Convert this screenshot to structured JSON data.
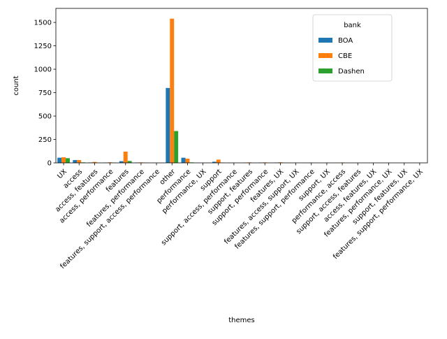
{
  "chart_data": {
    "type": "bar",
    "xlabel": "themes",
    "ylabel": "count",
    "ylim": [
      0,
      1650
    ],
    "yticks": [
      0,
      250,
      500,
      750,
      1000,
      1250,
      1500
    ],
    "grid": false,
    "legend": {
      "title": "bank",
      "placement": "top-right"
    },
    "categories": [
      "UX",
      "access",
      "access, features",
      "access, performance",
      "features",
      "features, performance",
      "features, support, access, performance",
      "other",
      "performance",
      "performance, UX",
      "support",
      "support, access, performance",
      "support, features",
      "support, performance",
      "features, UX",
      "features, access, support, UX",
      "features, support, performance",
      "support, UX",
      "performance, access",
      "support, access, features",
      "access, features, UX",
      "features, performance, UX",
      "support, features, UX",
      "features, support, performance, UX"
    ],
    "series": [
      {
        "name": "BOA",
        "color": "#1f77b4",
        "values": [
          55,
          30,
          4,
          3,
          18,
          3,
          1,
          800,
          55,
          1,
          12,
          1,
          2,
          3,
          3,
          0,
          1,
          0,
          0,
          0,
          0,
          0,
          0,
          0
        ]
      },
      {
        "name": "CBE",
        "color": "#ff7f0e",
        "values": [
          60,
          30,
          10,
          6,
          120,
          5,
          0,
          1540,
          45,
          0,
          35,
          2,
          5,
          5,
          6,
          2,
          3,
          2,
          4,
          1,
          1,
          1,
          0,
          1
        ]
      },
      {
        "name": "Dashen",
        "color": "#2ca02c",
        "values": [
          50,
          5,
          2,
          2,
          20,
          2,
          0,
          340,
          5,
          0,
          3,
          0,
          0,
          1,
          1,
          0,
          0,
          0,
          0,
          0,
          0,
          0,
          0,
          0
        ]
      }
    ]
  }
}
